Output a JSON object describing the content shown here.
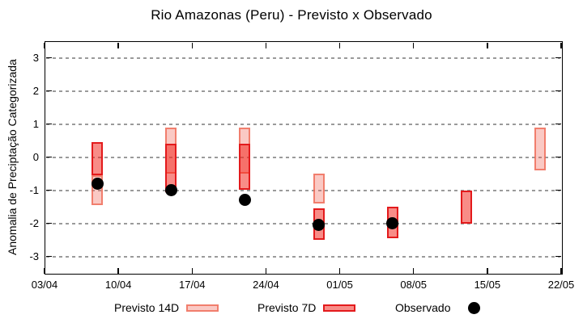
{
  "title": "Rio Amazonas (Peru) - Previsto x Observado",
  "y_axis": {
    "label": "Anomalia de Preciptação Categorizada",
    "tick_values": [
      3,
      2,
      1,
      0,
      -1,
      -2,
      -3
    ],
    "range": [
      -3.5,
      3.5
    ],
    "grid": true
  },
  "x_axis": {
    "tick_labels": [
      "03/04",
      "10/04",
      "17/04",
      "24/04",
      "01/05",
      "08/05",
      "15/05",
      "22/05"
    ],
    "tick_day_offsets": [
      0,
      7,
      14,
      21,
      28,
      35,
      42,
      49
    ],
    "span_days": 49
  },
  "legend": {
    "items": [
      {
        "label": "Previsto 14D",
        "marker": "light-pink-box"
      },
      {
        "label": "Previsto 7D",
        "marker": "red-box"
      },
      {
        "label": "Observado",
        "marker": "black-dot"
      }
    ],
    "position": "below-plot"
  },
  "colors": {
    "previsto_14d_fill": "#fac9c3",
    "previsto_14d_border": "#ef8b80",
    "previsto_7d_fill": "#f8807b",
    "previsto_7d_border": "#e31a1c",
    "overlap_fill": "#f66860",
    "observado": "#000000",
    "grid": "#9a9a9a",
    "text": "#000000"
  },
  "chart_data": {
    "type": "candlestick-range-bars-with-points",
    "title": "Rio Amazonas (Peru) - Previsto x Observado",
    "ylabel": "Anomalia de Preciptação Categorizada",
    "ylim": [
      -3.5,
      3.5
    ],
    "series_names": [
      "Previsto 14D",
      "Previsto 7D",
      "Observado"
    ],
    "groups": [
      {
        "date": "08/04",
        "day_offset": 5,
        "previsto_14d": [
          -1.45,
          -0.55
        ],
        "previsto_7d": [
          -0.55,
          0.45
        ],
        "observado": -0.8
      },
      {
        "date": "15/04",
        "day_offset": 12,
        "previsto_14d": [
          -0.5,
          0.9
        ],
        "previsto_7d": [
          -1.05,
          0.4
        ],
        "observado": -1.0
      },
      {
        "date": "22/04",
        "day_offset": 19,
        "previsto_14d": [
          -0.5,
          0.9
        ],
        "previsto_7d": [
          -1.0,
          0.4
        ],
        "observado": -1.3
      },
      {
        "date": "29/04",
        "day_offset": 26,
        "previsto_14d": [
          -1.4,
          -0.5
        ],
        "previsto_7d": [
          -2.5,
          -1.55
        ],
        "observado": -2.05
      },
      {
        "date": "06/05",
        "day_offset": 33,
        "previsto_14d": null,
        "previsto_7d": [
          -2.45,
          -1.5
        ],
        "observado": -2.0
      },
      {
        "date": "13/05",
        "day_offset": 40,
        "previsto_14d": null,
        "previsto_7d": [
          -2.0,
          -1.0
        ],
        "observado": null
      },
      {
        "date": "20/05",
        "day_offset": 47,
        "previsto_14d": [
          -0.4,
          0.9
        ],
        "previsto_7d": null,
        "observado": null
      }
    ]
  }
}
